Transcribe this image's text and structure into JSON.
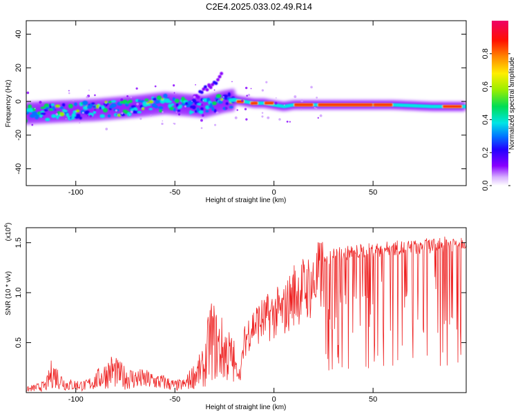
{
  "title": "C2E4.2025.033.02.49.R14",
  "chart_data": [
    {
      "type": "heatmap",
      "xlabel": "Height of straight line (km)",
      "ylabel": "Frequency (Hz)",
      "xlim": [
        -125,
        97
      ],
      "ylim": [
        -50,
        48
      ],
      "xticks": [
        -100,
        -50,
        0,
        50
      ],
      "yticks": [
        -40,
        -20,
        0,
        20,
        40
      ],
      "colorbar": {
        "label": "Normalized spectral amplitude",
        "range": [
          0.0,
          1.0
        ],
        "ticks": [
          "0.0",
          "0.2",
          "0.4",
          "0.6",
          "0.8"
        ],
        "colormap": [
          "#ffffff",
          "#cc99ff",
          "#8800ff",
          "#2200ff",
          "#0077ff",
          "#00e5e5",
          "#00dd55",
          "#99ee00",
          "#ffee00",
          "#ff8800",
          "#ff1100",
          "#ee0066"
        ]
      },
      "ridge_main": {
        "x": [
          -125,
          -110,
          -90,
          -70,
          -55,
          -45,
          -35,
          -25,
          -20,
          -15,
          -10,
          -5,
          0,
          5,
          10,
          20,
          40,
          60,
          80,
          97
        ],
        "y": [
          -7,
          -6,
          -5,
          -3,
          -1,
          -2,
          -3,
          0,
          1,
          0,
          -1,
          -1,
          -2,
          -3,
          -2,
          -2,
          -2,
          -2,
          -3,
          -3
        ]
      },
      "ridge_branch": {
        "x": [
          -40,
          -35,
          -30,
          -26
        ],
        "y": [
          2,
          7,
          11,
          16
        ]
      },
      "hot_segments": [
        {
          "x": [
            -19,
            -15
          ],
          "y": 0
        },
        {
          "x": [
            -12,
            -8
          ],
          "y": -1
        },
        {
          "x": [
            -5,
            0
          ],
          "y": -1
        },
        {
          "x": [
            10,
            20
          ],
          "y": -2
        },
        {
          "x": [
            22,
            50
          ],
          "y": -2
        },
        {
          "x": [
            50,
            60
          ],
          "y": -2
        },
        {
          "x": [
            85,
            95
          ],
          "y": -3
        }
      ]
    },
    {
      "type": "line",
      "xlabel": "Height of straight line (km)",
      "ylabel": "SNR (10 * v/v)",
      "y_multiplier": "(x10",
      "y_multiplier_exp": "4",
      "y_multiplier_close": ")",
      "xlim": [
        -125,
        97
      ],
      "ylim": [
        0,
        1.65
      ],
      "xticks": [
        -100,
        -50,
        0,
        50
      ],
      "yticks": [
        "0.5",
        "1.0",
        "1.5"
      ],
      "ytick_values": [
        0.5,
        1.0,
        1.5
      ],
      "color": "#ee2222",
      "series": [
        {
          "x": [
            -125,
            -115,
            -112,
            -105,
            -95,
            -90,
            -85,
            -82,
            -75,
            -65,
            -55,
            -50,
            -45,
            -40,
            -35,
            -32,
            -28,
            -24,
            -20,
            -17,
            -15,
            -12,
            -8,
            -4,
            0,
            5,
            10,
            15,
            20,
            25,
            30,
            40,
            50,
            60,
            70,
            80,
            90,
            97
          ],
          "y": [
            0.03,
            0.07,
            0.2,
            0.08,
            0.07,
            0.12,
            0.18,
            0.22,
            0.15,
            0.13,
            0.1,
            0.07,
            0.08,
            0.18,
            0.25,
            0.55,
            0.45,
            0.4,
            0.3,
            0.2,
            0.55,
            0.72,
            0.78,
            0.82,
            0.88,
            0.9,
            1.1,
            1.15,
            1.2,
            1.35,
            1.45,
            1.48,
            1.5,
            1.52,
            1.53,
            1.55,
            1.57,
            1.6
          ]
        }
      ]
    }
  ]
}
